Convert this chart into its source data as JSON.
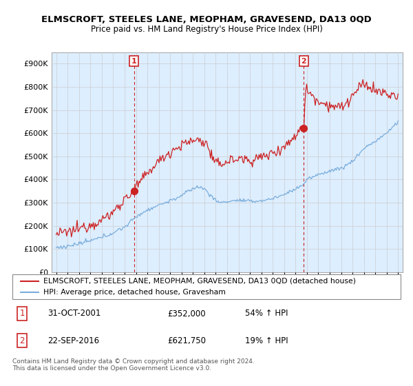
{
  "title": "ELMSCROFT, STEELES LANE, MEOPHAM, GRAVESEND, DA13 0QD",
  "subtitle": "Price paid vs. HM Land Registry's House Price Index (HPI)",
  "ytick_values": [
    0,
    100000,
    200000,
    300000,
    400000,
    500000,
    600000,
    700000,
    800000,
    900000
  ],
  "ylim": [
    0,
    950000
  ],
  "xlim_start": 1994.6,
  "xlim_end": 2025.4,
  "red_line_color": "#cc2222",
  "blue_line_color": "#7aaddb",
  "fill_color": "#ddeeff",
  "marker1_x": 2001.83,
  "marker1_y": 352000,
  "marker2_x": 2016.72,
  "marker2_y": 621750,
  "marker1_label": "1",
  "marker2_label": "2",
  "vline1_x": 2001.83,
  "vline2_x": 2016.72,
  "legend_line1": "ELMSCROFT, STEELES LANE, MEOPHAM, GRAVESEND, DA13 0QD (detached house)",
  "legend_line2": "HPI: Average price, detached house, Gravesham",
  "table_row1": [
    "1",
    "31-OCT-2001",
    "£352,000",
    "54% ↑ HPI"
  ],
  "table_row2": [
    "2",
    "22-SEP-2016",
    "£621,750",
    "19% ↑ HPI"
  ],
  "footnote": "Contains HM Land Registry data © Crown copyright and database right 2024.\nThis data is licensed under the Open Government Licence v3.0.",
  "background_color": "#ffffff",
  "grid_color": "#cccccc"
}
